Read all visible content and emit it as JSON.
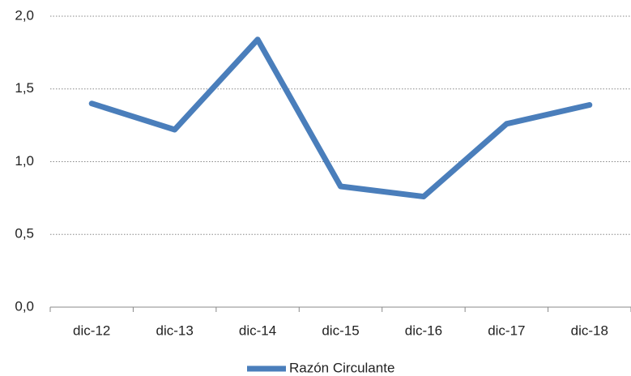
{
  "chart_data": {
    "type": "line",
    "categories": [
      "dic-12",
      "dic-13",
      "dic-14",
      "dic-15",
      "dic-16",
      "dic-17",
      "dic-18"
    ],
    "series": [
      {
        "name": "Razón Circulante",
        "color": "#4a7ebb",
        "values": [
          1.4,
          1.22,
          1.84,
          0.83,
          0.76,
          1.26,
          1.39
        ]
      }
    ],
    "ylim": [
      0,
      2
    ],
    "yticks": [
      {
        "value": 0,
        "label": "0,0"
      },
      {
        "value": 0.5,
        "label": "0,5"
      },
      {
        "value": 1,
        "label": "1,0"
      },
      {
        "value": 1.5,
        "label": "1,5"
      },
      {
        "value": 2,
        "label": "2,0"
      }
    ],
    "grid": true,
    "legend": "bottom"
  }
}
